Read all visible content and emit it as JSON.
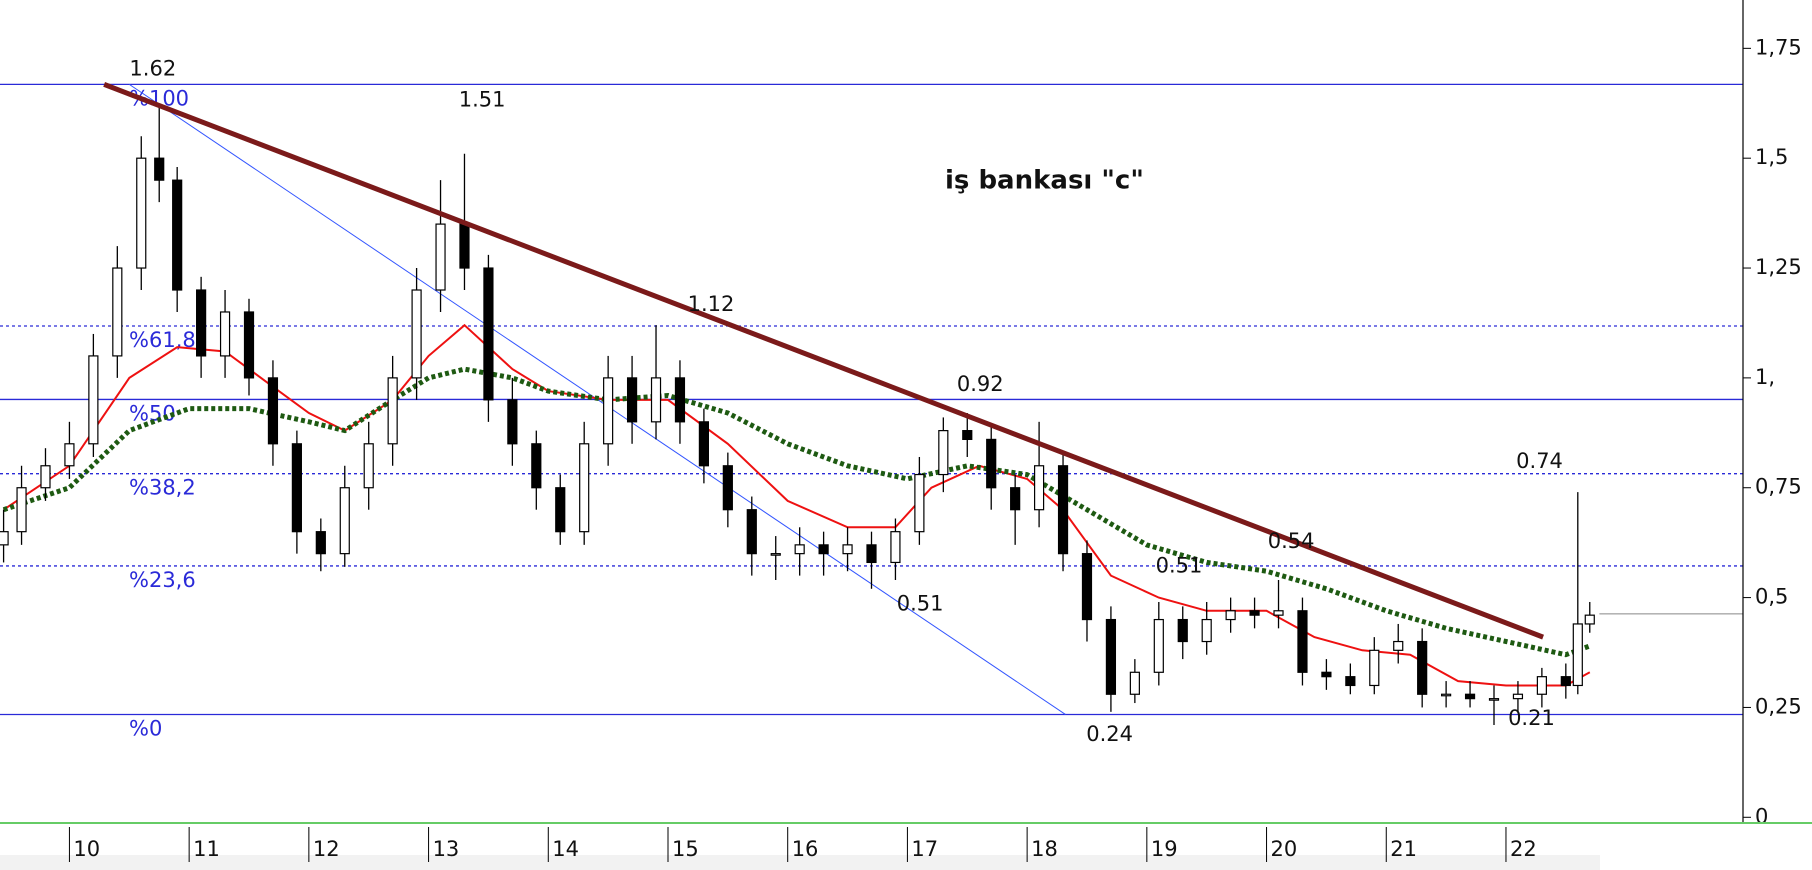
{
  "chart_data": {
    "type": "candlestick",
    "title": "iş bankası \"c\"",
    "xlim": [
      9.42,
      23.98
    ],
    "xticks": [
      10,
      11,
      12,
      13,
      14,
      15,
      16,
      17,
      18,
      19,
      20,
      21,
      22
    ],
    "ylim": [
      -0.013,
      1.86
    ],
    "yticks": [
      0,
      {
        "value": 0.25,
        "label": "0,25"
      },
      {
        "value": 0.5,
        "label": "0,5"
      },
      {
        "value": 0.75,
        "label": "0,75"
      },
      {
        "value": 1,
        "label": "1,"
      },
      {
        "value": 1.25,
        "label": "1,25"
      },
      {
        "value": 1.5,
        "label": "1,5"
      },
      {
        "value": 1.75,
        "label": "1,75"
      }
    ],
    "x": [
      9.45,
      9.6,
      9.8,
      10.0,
      10.2,
      10.4,
      10.6,
      10.75,
      10.9,
      11.1,
      11.3,
      11.5,
      11.7,
      11.9,
      12.1,
      12.3,
      12.5,
      12.7,
      12.9,
      13.1,
      13.3,
      13.5,
      13.7,
      13.9,
      14.1,
      14.3,
      14.5,
      14.7,
      14.9,
      15.1,
      15.3,
      15.5,
      15.7,
      15.9,
      16.1,
      16.3,
      16.5,
      16.7,
      16.9,
      17.1,
      17.3,
      17.5,
      17.7,
      17.9,
      18.1,
      18.3,
      18.5,
      18.7,
      18.9,
      19.1,
      19.3,
      19.5,
      19.7,
      19.9,
      20.1,
      20.3,
      20.5,
      20.7,
      20.9,
      21.1,
      21.3,
      21.5,
      21.7,
      21.9,
      22.1,
      22.3,
      22.5,
      22.6,
      22.7
    ],
    "open": [
      0.62,
      0.65,
      0.75,
      0.8,
      0.85,
      1.05,
      1.25,
      1.5,
      1.45,
      1.2,
      1.05,
      1.15,
      1.0,
      0.85,
      0.65,
      0.6,
      0.75,
      0.85,
      1.0,
      1.2,
      1.35,
      1.25,
      0.95,
      0.85,
      0.75,
      0.65,
      0.85,
      1.0,
      0.9,
      1.0,
      0.9,
      0.8,
      0.7,
      0.6,
      0.6,
      0.62,
      0.6,
      0.62,
      0.58,
      0.65,
      0.78,
      0.88,
      0.86,
      0.75,
      0.7,
      0.8,
      0.6,
      0.45,
      0.28,
      0.33,
      0.45,
      0.4,
      0.45,
      0.47,
      0.46,
      0.47,
      0.33,
      0.32,
      0.3,
      0.38,
      0.4,
      0.28,
      0.28,
      0.27,
      0.27,
      0.28,
      0.32,
      0.3,
      0.44
    ],
    "high": [
      0.7,
      0.8,
      0.84,
      0.9,
      1.1,
      1.3,
      1.55,
      1.62,
      1.48,
      1.23,
      1.2,
      1.18,
      1.04,
      0.88,
      0.68,
      0.8,
      0.9,
      1.05,
      1.25,
      1.45,
      1.51,
      1.28,
      1.0,
      0.88,
      0.78,
      0.9,
      1.05,
      1.05,
      1.12,
      1.04,
      0.93,
      0.83,
      0.73,
      0.64,
      0.66,
      0.65,
      0.66,
      0.65,
      0.68,
      0.82,
      0.91,
      0.92,
      0.89,
      0.78,
      0.9,
      0.83,
      0.63,
      0.48,
      0.36,
      0.49,
      0.48,
      0.49,
      0.5,
      0.5,
      0.54,
      0.5,
      0.36,
      0.35,
      0.41,
      0.44,
      0.43,
      0.31,
      0.31,
      0.3,
      0.31,
      0.34,
      0.35,
      0.74,
      0.49
    ],
    "low": [
      0.58,
      0.62,
      0.72,
      0.77,
      0.82,
      1.0,
      1.2,
      1.4,
      1.15,
      1.0,
      1.0,
      0.96,
      0.8,
      0.6,
      0.56,
      0.57,
      0.7,
      0.8,
      0.95,
      1.15,
      1.2,
      0.9,
      0.8,
      0.7,
      0.62,
      0.62,
      0.8,
      0.85,
      0.86,
      0.85,
      0.76,
      0.66,
      0.55,
      0.54,
      0.55,
      0.55,
      0.56,
      0.52,
      0.54,
      0.62,
      0.74,
      0.82,
      0.7,
      0.62,
      0.66,
      0.56,
      0.4,
      0.24,
      0.26,
      0.3,
      0.36,
      0.37,
      0.42,
      0.43,
      0.43,
      0.3,
      0.29,
      0.28,
      0.28,
      0.35,
      0.25,
      0.25,
      0.25,
      0.21,
      0.24,
      0.25,
      0.27,
      0.28,
      0.42
    ],
    "close": [
      0.65,
      0.75,
      0.8,
      0.85,
      1.05,
      1.25,
      1.5,
      1.45,
      1.2,
      1.05,
      1.15,
      1.0,
      0.85,
      0.65,
      0.6,
      0.75,
      0.85,
      1.0,
      1.2,
      1.35,
      1.25,
      0.95,
      0.85,
      0.75,
      0.65,
      0.85,
      1.0,
      0.9,
      1.0,
      0.9,
      0.8,
      0.7,
      0.6,
      0.6,
      0.62,
      0.6,
      0.62,
      0.58,
      0.65,
      0.78,
      0.88,
      0.86,
      0.75,
      0.7,
      0.8,
      0.6,
      0.45,
      0.28,
      0.33,
      0.45,
      0.4,
      0.45,
      0.47,
      0.46,
      0.47,
      0.33,
      0.32,
      0.3,
      0.38,
      0.4,
      0.28,
      0.28,
      0.27,
      0.27,
      0.28,
      0.32,
      0.3,
      0.44,
      0.46
    ],
    "up_color": "#ffffff",
    "down_color": "#000000",
    "series": [
      {
        "color": "#ee1111",
        "style": "solid",
        "x": [
          9.45,
          10,
          10.5,
          10.9,
          11.3,
          11.7,
          12,
          12.3,
          12.7,
          13,
          13.3,
          13.7,
          14,
          14.5,
          15,
          15.5,
          16,
          16.5,
          16.9,
          17.2,
          17.6,
          18,
          18.3,
          18.7,
          19.1,
          19.5,
          20,
          20.4,
          20.8,
          21.2,
          21.6,
          22,
          22.5,
          22.7
        ],
        "values": [
          0.7,
          0.8,
          1.0,
          1.07,
          1.06,
          0.98,
          0.92,
          0.88,
          0.95,
          1.05,
          1.12,
          1.02,
          0.97,
          0.95,
          0.95,
          0.85,
          0.72,
          0.66,
          0.66,
          0.75,
          0.8,
          0.77,
          0.7,
          0.55,
          0.5,
          0.47,
          0.47,
          0.41,
          0.38,
          0.37,
          0.31,
          0.3,
          0.3,
          0.33
        ]
      },
      {
        "color": "#1e5a12",
        "style": "dotted",
        "x": [
          9.45,
          10,
          10.5,
          11,
          11.5,
          12,
          12.3,
          12.7,
          13,
          13.3,
          13.7,
          14,
          14.5,
          15,
          15.5,
          16,
          16.5,
          17,
          17.5,
          18,
          18.5,
          19,
          19.5,
          20,
          20.5,
          21,
          21.5,
          22,
          22.5,
          22.7
        ],
        "values": [
          0.7,
          0.75,
          0.88,
          0.93,
          0.93,
          0.9,
          0.88,
          0.95,
          1.0,
          1.02,
          1.0,
          0.97,
          0.95,
          0.96,
          0.92,
          0.85,
          0.8,
          0.77,
          0.8,
          0.78,
          0.7,
          0.62,
          0.58,
          0.56,
          0.52,
          0.47,
          0.43,
          0.4,
          0.37,
          0.39
        ]
      }
    ],
    "trendline": {
      "x": [
        10.29,
        22.31
      ],
      "values": [
        1.668,
        0.41
      ],
      "color": "#7b1a1a"
    },
    "fib_line": {
      "x": [
        10.5,
        18.32
      ],
      "values": [
        1.668,
        0.234
      ],
      "color": "#3355ff"
    },
    "fib_levels": [
      {
        "label": "%100",
        "value": 1.668,
        "dashed": false
      },
      {
        "label": "%61,8",
        "value": 1.118,
        "dashed": true
      },
      {
        "label": "%50",
        "value": 0.951,
        "dashed": false
      },
      {
        "label": "%38,2",
        "value": 0.782,
        "dashed": true
      },
      {
        "label": "%23,6",
        "value": 0.572,
        "dashed": true
      },
      {
        "label": "%0",
        "value": 0.234,
        "dashed": false
      }
    ],
    "fib_color": "#2a2ad8",
    "last_price": 0.463,
    "annotations": [
      "1.62",
      "1.51",
      "1.12",
      "0.92",
      "0.74",
      "0.54",
      "0.51",
      "0.51",
      "0.24",
      "0.21"
    ]
  }
}
